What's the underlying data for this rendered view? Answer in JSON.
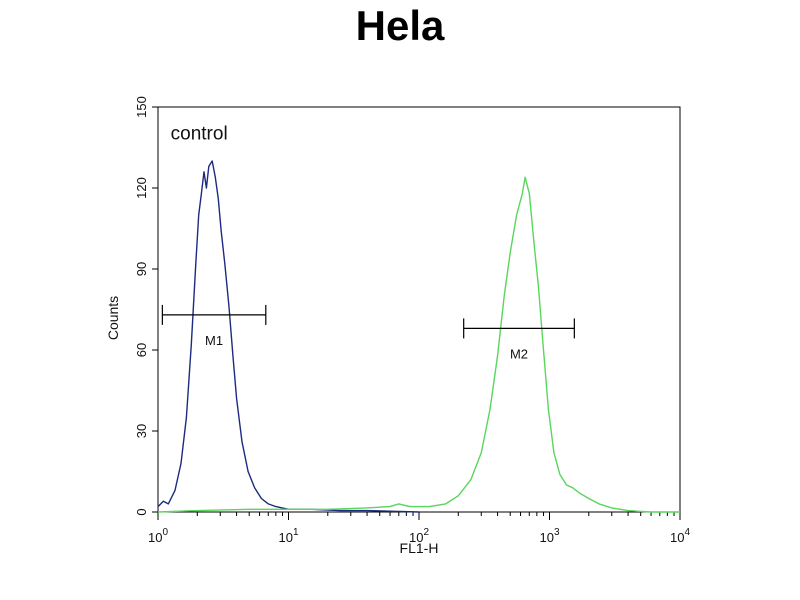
{
  "chart_data": {
    "type": "line",
    "title": "Hela",
    "xlabel": "FL1-H",
    "ylabel": "Counts",
    "xscale": "log",
    "xlim": [
      1,
      10000
    ],
    "ylim": [
      0,
      150
    ],
    "grid": false,
    "x_ticks": [
      {
        "value": 1,
        "base": "10",
        "exp": "0"
      },
      {
        "value": 10,
        "base": "10",
        "exp": "1"
      },
      {
        "value": 100,
        "base": "10",
        "exp": "2"
      },
      {
        "value": 1000,
        "base": "10",
        "exp": "3"
      },
      {
        "value": 10000,
        "base": "10",
        "exp": "4"
      }
    ],
    "y_ticks": [
      {
        "value": 0,
        "label": "0"
      },
      {
        "value": 30,
        "label": "30"
      },
      {
        "value": 60,
        "label": "60"
      },
      {
        "value": 90,
        "label": "90"
      },
      {
        "value": 120,
        "label": "120"
      },
      {
        "value": 150,
        "label": "150"
      }
    ],
    "series": [
      {
        "name": "control",
        "color": "#1c2a80",
        "points": [
          [
            1.0,
            2
          ],
          [
            1.1,
            4
          ],
          [
            1.2,
            3
          ],
          [
            1.35,
            8
          ],
          [
            1.5,
            18
          ],
          [
            1.65,
            35
          ],
          [
            1.8,
            62
          ],
          [
            1.95,
            92
          ],
          [
            2.05,
            110
          ],
          [
            2.15,
            118
          ],
          [
            2.25,
            126
          ],
          [
            2.35,
            120
          ],
          [
            2.45,
            128
          ],
          [
            2.6,
            130
          ],
          [
            2.75,
            124
          ],
          [
            2.9,
            116
          ],
          [
            3.05,
            104
          ],
          [
            3.25,
            92
          ],
          [
            3.5,
            76
          ],
          [
            3.75,
            58
          ],
          [
            4.0,
            42
          ],
          [
            4.4,
            26
          ],
          [
            4.9,
            15
          ],
          [
            5.5,
            9
          ],
          [
            6.2,
            5
          ],
          [
            7.0,
            3
          ],
          [
            8.0,
            2
          ],
          [
            10,
            1
          ],
          [
            15,
            1
          ],
          [
            25,
            0.5
          ],
          [
            40,
            0.5
          ],
          [
            60,
            0.3
          ],
          [
            100,
            0
          ]
        ]
      },
      {
        "name": "",
        "color": "#59d65c",
        "points": [
          [
            1.0,
            0
          ],
          [
            2,
            0.5
          ],
          [
            5,
            1
          ],
          [
            10,
            1
          ],
          [
            20,
            1
          ],
          [
            40,
            1.5
          ],
          [
            60,
            2
          ],
          [
            70,
            3
          ],
          [
            85,
            2
          ],
          [
            120,
            2
          ],
          [
            160,
            3
          ],
          [
            200,
            6
          ],
          [
            250,
            12
          ],
          [
            300,
            22
          ],
          [
            350,
            38
          ],
          [
            400,
            58
          ],
          [
            450,
            80
          ],
          [
            500,
            96
          ],
          [
            560,
            110
          ],
          [
            620,
            118
          ],
          [
            650,
            124
          ],
          [
            700,
            118
          ],
          [
            760,
            100
          ],
          [
            820,
            84
          ],
          [
            900,
            60
          ],
          [
            980,
            38
          ],
          [
            1080,
            22
          ],
          [
            1200,
            14
          ],
          [
            1350,
            10
          ],
          [
            1500,
            9
          ],
          [
            1700,
            7
          ],
          [
            2000,
            5
          ],
          [
            2400,
            3
          ],
          [
            3000,
            1.5
          ],
          [
            4000,
            0.5
          ],
          [
            6000,
            0
          ],
          [
            10000,
            0
          ]
        ]
      }
    ],
    "markers": [
      {
        "label": "M1",
        "x_start": 1.08,
        "x_end": 6.7,
        "y": 73
      },
      {
        "label": "M2",
        "x_start": 220,
        "x_end": 1550,
        "y": 68
      }
    ],
    "annotations": [
      {
        "text": "control",
        "x": 1.25,
        "y": 138
      }
    ]
  }
}
